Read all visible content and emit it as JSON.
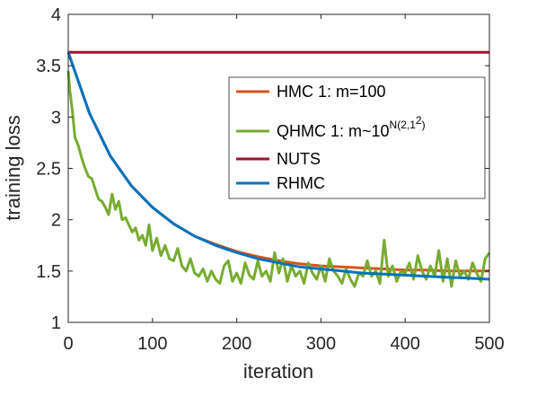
{
  "chart_data": {
    "type": "line",
    "title": "",
    "xlabel": "iteration",
    "ylabel": "training loss",
    "xlim": [
      0,
      500
    ],
    "ylim": [
      1,
      4
    ],
    "xticks": [
      0,
      100,
      200,
      300,
      400,
      500
    ],
    "yticks": [
      1,
      1.5,
      2,
      2.5,
      3,
      3.5,
      4
    ],
    "xtick_labels": [
      "0",
      "100",
      "200",
      "300",
      "400",
      "500"
    ],
    "ytick_labels": [
      "1",
      "1.5",
      "2",
      "2.5",
      "3",
      "3.5",
      "4"
    ],
    "grid": false,
    "legend_position": "center-right",
    "series": [
      {
        "name": "HMC 1: m=100",
        "color": "#d95319",
        "x": [
          0,
          25,
          50,
          75,
          100,
          125,
          150,
          175,
          200,
          225,
          250,
          275,
          300,
          325,
          350,
          375,
          400,
          425,
          450,
          475,
          500
        ],
        "y": [
          3.63,
          3.04,
          2.62,
          2.33,
          2.12,
          1.96,
          1.84,
          1.76,
          1.69,
          1.64,
          1.6,
          1.57,
          1.55,
          1.54,
          1.53,
          1.52,
          1.51,
          1.51,
          1.5,
          1.5,
          1.5
        ]
      },
      {
        "name": "QHMC 1: m~10",
        "name_superscript": "N(2,1",
        "name_superscript_power": "2",
        "name_superscript_close": ")",
        "color": "#77ac30",
        "x": [
          0,
          2,
          5,
          8,
          12,
          16,
          20,
          24,
          28,
          32,
          36,
          40,
          44,
          48,
          52,
          56,
          60,
          64,
          68,
          72,
          76,
          80,
          84,
          88,
          92,
          96,
          100,
          105,
          110,
          115,
          120,
          125,
          130,
          135,
          140,
          145,
          150,
          155,
          160,
          165,
          170,
          175,
          180,
          185,
          190,
          195,
          200,
          205,
          210,
          215,
          220,
          225,
          230,
          235,
          240,
          245,
          250,
          255,
          260,
          265,
          270,
          275,
          280,
          285,
          290,
          295,
          300,
          305,
          310,
          315,
          320,
          325,
          330,
          335,
          340,
          345,
          350,
          355,
          360,
          365,
          370,
          375,
          380,
          385,
          390,
          395,
          400,
          405,
          410,
          415,
          420,
          425,
          430,
          435,
          440,
          445,
          450,
          455,
          460,
          465,
          470,
          475,
          480,
          485,
          490,
          495,
          500
        ],
        "y": [
          3.45,
          3.25,
          3.05,
          2.8,
          2.72,
          2.6,
          2.5,
          2.42,
          2.4,
          2.3,
          2.2,
          2.18,
          2.12,
          2.05,
          2.25,
          2.1,
          2.18,
          2.0,
          2.02,
          1.95,
          1.88,
          1.92,
          1.8,
          1.85,
          1.75,
          1.95,
          1.7,
          1.82,
          1.65,
          1.75,
          1.62,
          1.6,
          1.72,
          1.55,
          1.5,
          1.62,
          1.48,
          1.45,
          1.52,
          1.4,
          1.5,
          1.42,
          1.38,
          1.55,
          1.6,
          1.4,
          1.48,
          1.38,
          1.58,
          1.46,
          1.42,
          1.6,
          1.45,
          1.5,
          1.4,
          1.68,
          1.48,
          1.62,
          1.4,
          1.55,
          1.45,
          1.5,
          1.38,
          1.58,
          1.48,
          1.42,
          1.55,
          1.4,
          1.62,
          1.5,
          1.45,
          1.38,
          1.52,
          1.42,
          1.35,
          1.48,
          1.45,
          1.6,
          1.45,
          1.5,
          1.38,
          1.8,
          1.45,
          1.55,
          1.4,
          1.5,
          1.48,
          1.58,
          1.42,
          1.65,
          1.5,
          1.42,
          1.55,
          1.45,
          1.7,
          1.4,
          1.62,
          1.35,
          1.6,
          1.45,
          1.5,
          1.42,
          1.58,
          1.48,
          1.4,
          1.62,
          1.68
        ]
      },
      {
        "name": "NUTS",
        "color": "#a2142f",
        "x": [
          0,
          500
        ],
        "y": [
          3.63,
          3.63
        ]
      },
      {
        "name": "RHMC",
        "color": "#0072bd",
        "x": [
          0,
          25,
          50,
          75,
          100,
          125,
          150,
          175,
          200,
          225,
          250,
          275,
          300,
          325,
          350,
          375,
          400,
          425,
          450,
          475,
          500
        ],
        "y": [
          3.63,
          3.04,
          2.62,
          2.33,
          2.12,
          1.96,
          1.84,
          1.75,
          1.68,
          1.62,
          1.58,
          1.54,
          1.52,
          1.5,
          1.48,
          1.47,
          1.46,
          1.45,
          1.44,
          1.43,
          1.42
        ]
      }
    ]
  }
}
